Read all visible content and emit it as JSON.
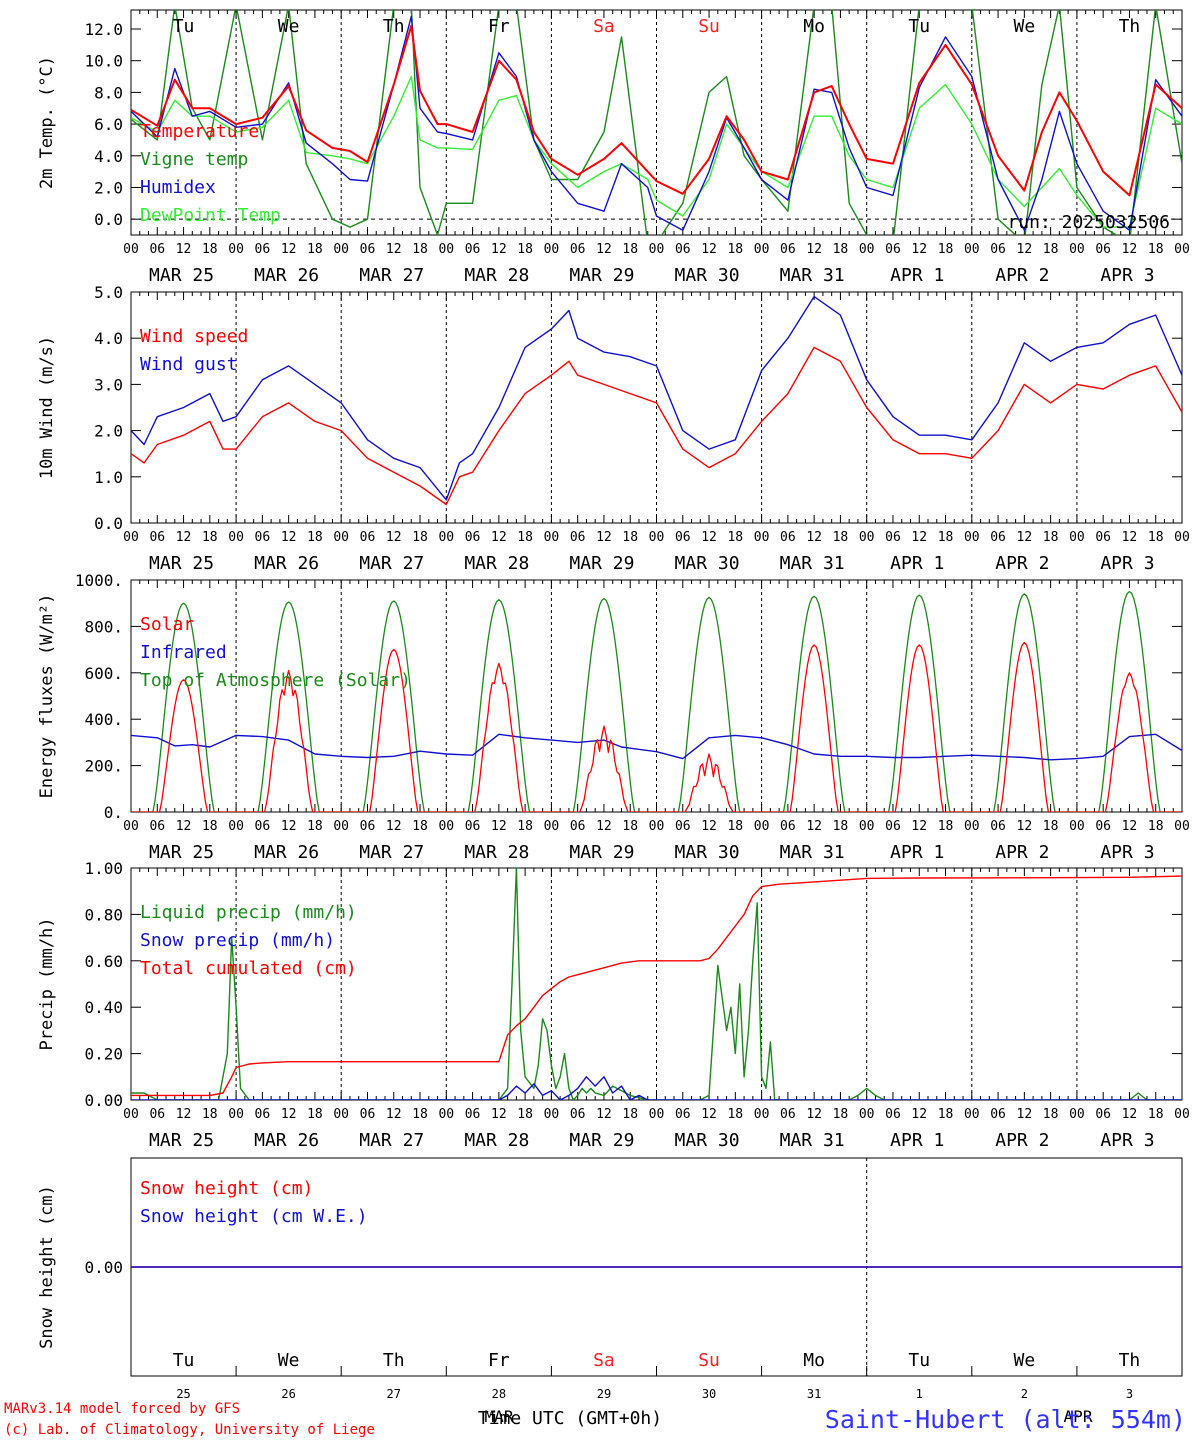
{
  "days_axis": {
    "hour_ticks": [
      "00",
      "06",
      "12",
      "18"
    ],
    "date_labels": [
      "MAR 25",
      "MAR 26",
      "MAR 27",
      "MAR 28",
      "MAR 29",
      "MAR 30",
      "MAR 31",
      "APR  1",
      "APR  2",
      "APR  3"
    ],
    "weekday_labels": [
      "Tu",
      "We",
      "Th",
      "Fr",
      "Sa",
      "Su",
      "Mo",
      "Tu",
      "We",
      "Th"
    ],
    "weekend_indices": [
      4,
      5
    ],
    "day_numbers": [
      "25",
      "26",
      "27",
      "28",
      "29",
      "30",
      "31",
      "1",
      "2",
      "3"
    ],
    "month_labels": [
      "MAR",
      "APR"
    ]
  },
  "footer": {
    "credit_line1": "MARv3.14 model forced by GFS",
    "credit_line2": "(c) Lab. of Climatology, University of Liege",
    "time_label": "Time UTC (GMT+0h)",
    "station": "Saint-Hubert (alt: 554m)"
  },
  "colors": {
    "red": "#ff0000",
    "green": "#1a8a1a",
    "blue": "#1010d0",
    "lightgreen": "#33ee33",
    "weekend": "#ff2020"
  },
  "chart_data": [
    {
      "type": "line",
      "ylabel": "2m Temp. (°C)",
      "ylim": [
        -1.0,
        13.2
      ],
      "yticks": [
        "12.0",
        "10.0",
        "8.0",
        "6.0",
        "4.0",
        "2.0",
        "0.0"
      ],
      "ytick_values": [
        12,
        10,
        8,
        6,
        4,
        2,
        0
      ],
      "run_label": "run: 2025032506",
      "hlines": [
        0
      ],
      "x_hours": [
        0,
        6,
        10,
        14,
        18,
        24,
        30,
        36,
        40,
        46,
        50,
        54,
        60,
        64,
        66,
        70,
        72,
        78,
        84,
        88,
        92,
        96,
        102,
        108,
        112,
        118,
        120,
        126,
        132,
        136,
        140,
        144,
        150,
        156,
        160,
        164,
        168,
        174,
        180,
        186,
        192,
        198,
        204,
        208,
        212,
        216,
        222,
        228,
        234,
        240
      ],
      "series": [
        {
          "name": "Temperature",
          "color": "#ff0000",
          "values": [
            6.9,
            5.9,
            8.8,
            7.0,
            7.0,
            6.0,
            6.4,
            8.4,
            5.6,
            4.5,
            4.3,
            3.6,
            8.5,
            12.2,
            8.1,
            6.0,
            6.0,
            5.5,
            10.0,
            8.8,
            5.5,
            3.8,
            2.8,
            3.8,
            4.8,
            3.0,
            2.4,
            1.6,
            3.8,
            6.5,
            5.0,
            3.0,
            2.5,
            8.0,
            8.4,
            6.0,
            3.8,
            3.5,
            8.6,
            11.0,
            8.5,
            4.0,
            1.8,
            5.5,
            8.0,
            6.2,
            3.0,
            1.5,
            8.5,
            7.0
          ]
        },
        {
          "name": "Vigne temp",
          "color": "#1a8a1a",
          "values": [
            6.3,
            5.0,
            13.5,
            7.0,
            5.0,
            13.5,
            5.0,
            13.5,
            3.5,
            0.0,
            -0.5,
            0.0,
            13.5,
            13.5,
            2.0,
            -1.0,
            1.0,
            1.0,
            13.5,
            13.5,
            5.0,
            2.5,
            2.5,
            5.5,
            11.5,
            -1.5,
            -1.5,
            1.0,
            8.0,
            9.0,
            4.0,
            2.5,
            0.5,
            13.5,
            13.5,
            1.0,
            -1.0,
            -1.5,
            13.5,
            13.5,
            13.5,
            0.0,
            -1.5,
            8.5,
            13.5,
            2.0,
            -0.5,
            -1.5,
            13.5,
            3.5
          ]
        },
        {
          "name": "Humidex",
          "color": "#1010d0",
          "values": [
            6.8,
            5.2,
            9.5,
            6.5,
            6.8,
            5.8,
            6.0,
            8.6,
            4.8,
            3.5,
            2.5,
            2.4,
            8.5,
            12.8,
            7.0,
            5.5,
            5.4,
            5.0,
            10.5,
            9.0,
            5.0,
            3.0,
            1.0,
            0.5,
            3.5,
            2.0,
            0.2,
            -0.7,
            3.0,
            6.4,
            4.5,
            2.5,
            1.2,
            8.2,
            8.0,
            4.5,
            2.0,
            1.5,
            8.3,
            11.5,
            9.0,
            2.5,
            -0.7,
            2.5,
            6.8,
            3.5,
            0.5,
            -0.7,
            8.8,
            6.5
          ]
        },
        {
          "name": "DewPoint Temp",
          "color": "#33ee33",
          "values": [
            6.4,
            5.5,
            7.5,
            6.5,
            6.5,
            5.5,
            5.8,
            7.5,
            4.2,
            4.0,
            3.8,
            3.5,
            6.5,
            9.0,
            5.0,
            4.5,
            4.5,
            4.4,
            7.5,
            7.8,
            5.0,
            3.5,
            2.0,
            3.0,
            3.5,
            2.5,
            1.2,
            0.2,
            2.5,
            6.0,
            4.5,
            3.0,
            2.0,
            6.5,
            6.5,
            4.0,
            2.5,
            2.0,
            7.0,
            8.5,
            6.0,
            2.5,
            0.8,
            2.0,
            3.2,
            1.5,
            -0.5,
            -0.5,
            7.0,
            6.0
          ]
        }
      ]
    },
    {
      "type": "line",
      "ylabel": "10m Wind (m/s)",
      "ylim": [
        0,
        5
      ],
      "yticks": [
        "5.0",
        "4.0",
        "3.0",
        "2.0",
        "1.0",
        "0.0"
      ],
      "ytick_values": [
        5,
        4,
        3,
        2,
        1,
        0
      ],
      "x_hours": [
        0,
        3,
        6,
        12,
        18,
        21,
        24,
        30,
        36,
        42,
        48,
        54,
        60,
        66,
        72,
        75,
        78,
        84,
        90,
        96,
        100,
        102,
        108,
        114,
        120,
        126,
        132,
        138,
        144,
        150,
        156,
        162,
        168,
        174,
        180,
        186,
        192,
        198,
        204,
        210,
        216,
        222,
        228,
        234,
        240
      ],
      "series": [
        {
          "name": "Wind speed",
          "color": "#ff0000",
          "values": [
            1.5,
            1.3,
            1.7,
            1.9,
            2.2,
            1.6,
            1.6,
            2.3,
            2.6,
            2.2,
            2.0,
            1.4,
            1.1,
            0.8,
            0.4,
            1.0,
            1.1,
            2.0,
            2.8,
            3.2,
            3.5,
            3.2,
            3.0,
            2.8,
            2.6,
            1.6,
            1.2,
            1.5,
            2.2,
            2.8,
            3.8,
            3.5,
            2.5,
            1.8,
            1.5,
            1.5,
            1.4,
            2.0,
            3.0,
            2.6,
            3.0,
            2.9,
            3.2,
            3.4,
            2.4
          ]
        },
        {
          "name": "Wind gust",
          "color": "#1010d0",
          "values": [
            2.0,
            1.7,
            2.3,
            2.5,
            2.8,
            2.2,
            2.3,
            3.1,
            3.4,
            3.0,
            2.6,
            1.8,
            1.4,
            1.2,
            0.5,
            1.3,
            1.5,
            2.5,
            3.8,
            4.2,
            4.6,
            4.0,
            3.7,
            3.6,
            3.4,
            2.0,
            1.6,
            1.8,
            3.3,
            4.0,
            4.9,
            4.5,
            3.1,
            2.3,
            1.9,
            1.9,
            1.8,
            2.6,
            3.9,
            3.5,
            3.8,
            3.9,
            4.3,
            4.5,
            3.2
          ]
        }
      ]
    },
    {
      "type": "line",
      "ylabel": "Energy fluxes (W/m²)",
      "ylim": [
        0,
        1000
      ],
      "yticks": [
        "1000.",
        "800.",
        "600.",
        "400.",
        "200.",
        "0."
      ],
      "ytick_values": [
        1000,
        800,
        600,
        400,
        200,
        0
      ],
      "series": [
        {
          "name": "Solar",
          "color": "#ff0000",
          "peaks": [
            570,
            610,
            700,
            640,
            370,
            250,
            720,
            720,
            730,
            600
          ]
        },
        {
          "name": "Infrared",
          "color": "#1010d0",
          "x_hours": [
            0,
            6,
            10,
            14,
            18,
            24,
            30,
            36,
            42,
            48,
            54,
            60,
            66,
            72,
            78,
            84,
            90,
            96,
            102,
            108,
            112,
            120,
            126,
            132,
            138,
            144,
            150,
            156,
            162,
            168,
            174,
            180,
            186,
            192,
            198,
            204,
            210,
            216,
            222,
            228,
            234,
            240
          ],
          "values": [
            330,
            320,
            285,
            290,
            280,
            330,
            325,
            310,
            250,
            240,
            235,
            240,
            262,
            250,
            245,
            335,
            320,
            310,
            300,
            310,
            280,
            260,
            230,
            320,
            330,
            320,
            290,
            250,
            240,
            240,
            235,
            235,
            240,
            245,
            240,
            235,
            225,
            230,
            240,
            325,
            335,
            265
          ]
        },
        {
          "name": "Top of Atmosphere (Solar)",
          "color": "#1a8a1a",
          "peaks": [
            900,
            905,
            910,
            915,
            920,
            925,
            930,
            935,
            940,
            950
          ]
        }
      ]
    },
    {
      "type": "line",
      "ylabel": "Precip (mm/h)",
      "ylim": [
        0,
        1
      ],
      "yticks": [
        "1.00",
        "0.80",
        "0.60",
        "0.40",
        "0.20",
        "0.00"
      ],
      "ytick_values": [
        1,
        0.8,
        0.6,
        0.4,
        0.2,
        0
      ],
      "series": [
        {
          "name": "Liquid precip (mm/h)",
          "color": "#1a8a1a",
          "x_hours": [
            0,
            3,
            6,
            20,
            22,
            23,
            24,
            25,
            27,
            30,
            84,
            86,
            87,
            88,
            89,
            90,
            92,
            93,
            94,
            95,
            96,
            97,
            98,
            99,
            100,
            101,
            102,
            103,
            104,
            105,
            106,
            108,
            110,
            112,
            114,
            116,
            118,
            120,
            122,
            124,
            126,
            128,
            130,
            132,
            134,
            136,
            137,
            138,
            139,
            140,
            141,
            142,
            143,
            144,
            145,
            146,
            147,
            148,
            152,
            154,
            156,
            158,
            160,
            162,
            164,
            166,
            168,
            170,
            172,
            174,
            176,
            178,
            180,
            190,
            200,
            210,
            220,
            228,
            230,
            232,
            234,
            240
          ],
          "values": [
            0.03,
            0.03,
            0.0,
            0.0,
            0.2,
            0.7,
            0.4,
            0.05,
            0.0,
            0.0,
            0.0,
            0.05,
            0.5,
            1.0,
            0.3,
            0.1,
            0.05,
            0.15,
            0.35,
            0.3,
            0.15,
            0.05,
            0.1,
            0.2,
            0.05,
            0.0,
            0.02,
            0.05,
            0.03,
            0.05,
            0.03,
            0.02,
            0.06,
            0.04,
            0.02,
            0.01,
            0.0,
            0.0,
            0.0,
            0.0,
            0.0,
            0.0,
            0.0,
            0.02,
            0.58,
            0.3,
            0.4,
            0.2,
            0.5,
            0.1,
            0.3,
            0.6,
            0.85,
            0.1,
            0.05,
            0.25,
            0.0,
            0.0,
            0.0,
            0.0,
            0.0,
            0.0,
            0.0,
            0.0,
            0.0,
            0.02,
            0.05,
            0.02,
            0.0,
            0.0,
            0.0,
            0.0,
            0.0,
            0.0,
            0.0,
            0.0,
            0.0,
            0.0,
            0.03,
            0.0,
            0.0,
            0.0
          ]
        },
        {
          "name": "Snow precip (mm/h)",
          "color": "#1010d0",
          "x_hours": [
            0,
            84,
            86,
            88,
            90,
            92,
            94,
            96,
            98,
            100,
            102,
            104,
            106,
            108,
            110,
            112,
            114,
            116,
            118,
            120,
            240
          ],
          "values": [
            0,
            0,
            0.02,
            0.06,
            0.03,
            0.07,
            0.02,
            0.04,
            0.0,
            0.02,
            0.05,
            0.1,
            0.06,
            0.1,
            0.03,
            0.06,
            0.0,
            0.02,
            0.0,
            0.0,
            0.0
          ]
        },
        {
          "name": "Total cumulated (cm)",
          "color": "#ff0000",
          "x_hours": [
            0,
            18,
            21,
            23,
            24,
            27,
            30,
            36,
            48,
            72,
            84,
            86,
            88,
            90,
            92,
            94,
            96,
            98,
            100,
            102,
            104,
            106,
            108,
            112,
            116,
            118,
            120,
            130,
            132,
            134,
            136,
            138,
            140,
            142,
            143,
            144,
            148,
            152,
            156,
            168,
            180,
            210,
            228,
            240
          ],
          "values": [
            0.02,
            0.02,
            0.03,
            0.1,
            0.14,
            0.155,
            0.16,
            0.165,
            0.165,
            0.165,
            0.165,
            0.28,
            0.32,
            0.35,
            0.4,
            0.45,
            0.48,
            0.51,
            0.53,
            0.54,
            0.55,
            0.56,
            0.57,
            0.59,
            0.6,
            0.6,
            0.6,
            0.6,
            0.61,
            0.65,
            0.7,
            0.75,
            0.8,
            0.88,
            0.9,
            0.92,
            0.93,
            0.935,
            0.94,
            0.955,
            0.957,
            0.958,
            0.96,
            0.965
          ]
        }
      ]
    },
    {
      "type": "line",
      "ylabel": "Snow height (cm)",
      "ylim": [
        -1,
        1
      ],
      "yticks": [
        "0.00"
      ],
      "ytick_values": [
        0
      ],
      "series": [
        {
          "name": "Snow height (cm)",
          "color": "#ff0000",
          "x_hours": [
            0,
            240
          ],
          "values": [
            0,
            0
          ]
        },
        {
          "name": "Snow height (cm W.E.)",
          "color": "#1010d0",
          "x_hours": [
            0,
            240
          ],
          "values": [
            0,
            0
          ]
        }
      ]
    }
  ]
}
